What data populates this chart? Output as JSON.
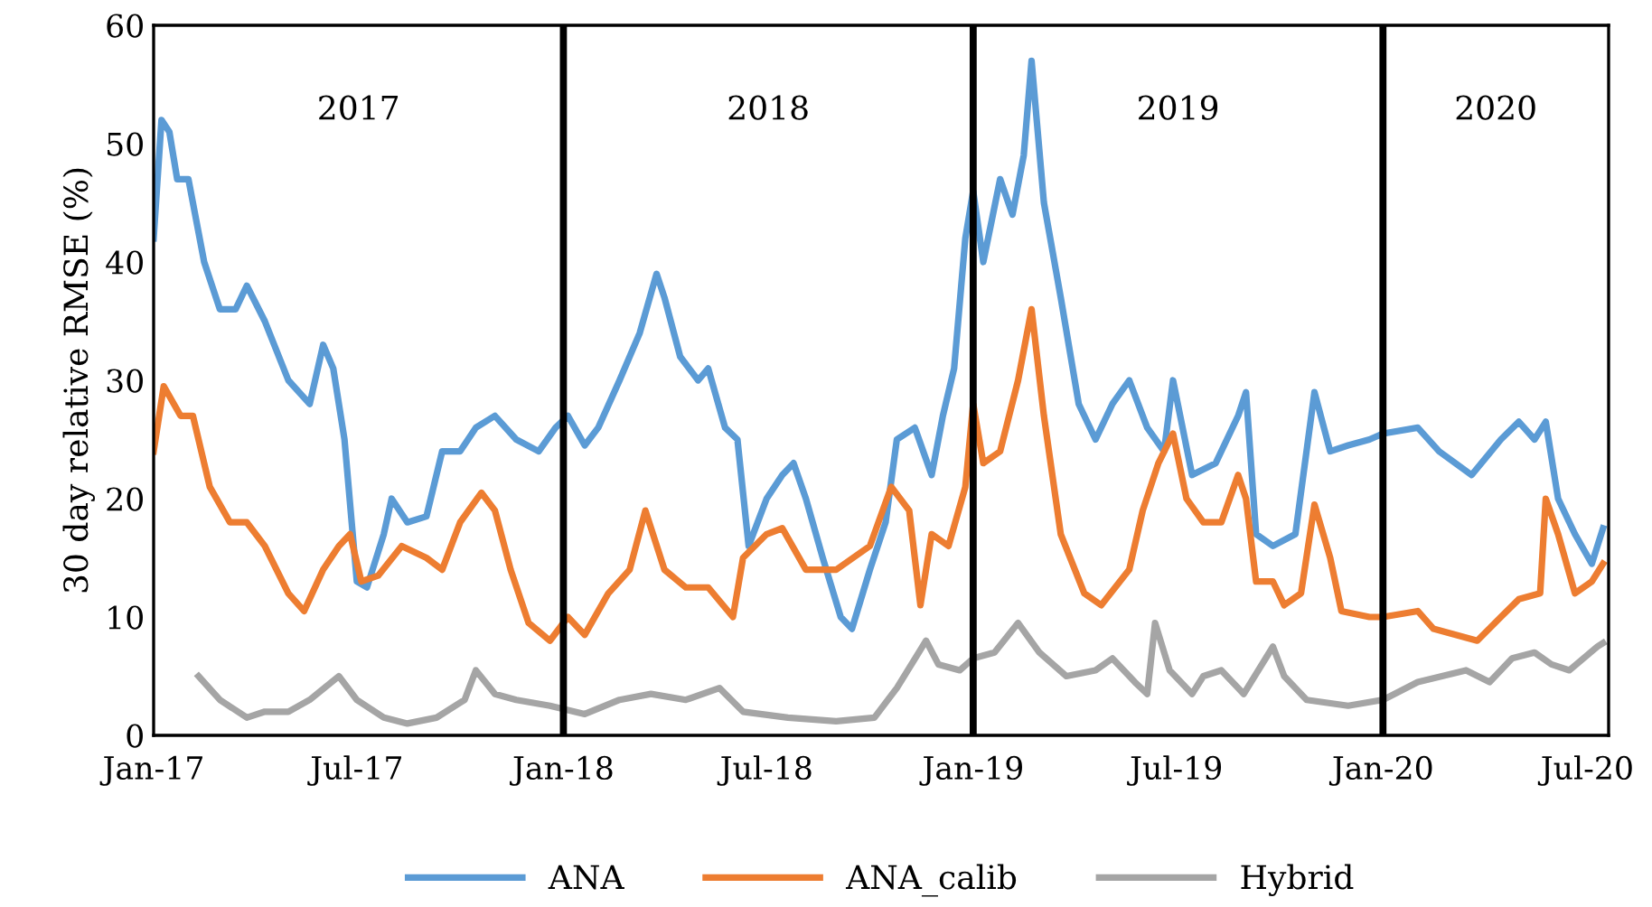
{
  "chart_data": {
    "type": "line",
    "ylabel": "30 day relative RMSE (%)",
    "xlim": [
      "2017-01-01",
      "2020-07-20"
    ],
    "ylim": [
      0,
      60
    ],
    "yticks": [
      0,
      10,
      20,
      30,
      40,
      50,
      60
    ],
    "xticks": [
      {
        "value": "2017-01-01",
        "label": "Jan-17"
      },
      {
        "value": "2017-07-01",
        "label": "Jul-17"
      },
      {
        "value": "2018-01-01",
        "label": "Jan-18"
      },
      {
        "value": "2018-07-01",
        "label": "Jul-18"
      },
      {
        "value": "2019-01-01",
        "label": "Jan-19"
      },
      {
        "value": "2019-07-01",
        "label": "Jul-19"
      },
      {
        "value": "2020-01-01",
        "label": "Jan-20"
      },
      {
        "value": "2020-07-01",
        "label": "Jul-20"
      }
    ],
    "grid": false,
    "legend": "bottom",
    "marker": "none",
    "line_style": "solid",
    "annotations": [
      "2017",
      "2018",
      "2019",
      "2020"
    ],
    "ref_lines": [
      {
        "axis": "x",
        "value": "2018-01-01",
        "color": "#000000"
      },
      {
        "axis": "x",
        "value": "2019-01-01",
        "color": "#000000"
      },
      {
        "axis": "x",
        "value": "2020-01-01",
        "color": "#000000"
      }
    ],
    "series": [
      {
        "name": "ANA",
        "color": "#5b9bd5",
        "x": [
          "2017-01-01",
          "2017-01-08",
          "2017-01-15",
          "2017-01-22",
          "2017-02-01",
          "2017-02-15",
          "2017-03-01",
          "2017-03-15",
          "2017-03-25",
          "2017-04-10",
          "2017-05-01",
          "2017-05-20",
          "2017-06-01",
          "2017-06-10",
          "2017-06-20",
          "2017-07-01",
          "2017-07-10",
          "2017-07-25",
          "2017-08-01",
          "2017-08-15",
          "2017-09-01",
          "2017-09-15",
          "2017-10-01",
          "2017-10-15",
          "2017-11-01",
          "2017-11-20",
          "2017-12-10",
          "2017-12-25",
          "2018-01-05",
          "2018-01-20",
          "2018-02-01",
          "2018-02-20",
          "2018-03-10",
          "2018-03-25",
          "2018-04-01",
          "2018-04-15",
          "2018-05-01",
          "2018-05-10",
          "2018-05-25",
          "2018-06-05",
          "2018-06-15",
          "2018-07-01",
          "2018-07-15",
          "2018-07-25",
          "2018-08-05",
          "2018-08-20",
          "2018-09-05",
          "2018-09-15",
          "2018-10-01",
          "2018-10-15",
          "2018-10-25",
          "2018-11-10",
          "2018-11-25",
          "2018-12-05",
          "2018-12-15",
          "2018-12-25",
          "2019-01-01",
          "2019-01-10",
          "2019-01-25",
          "2019-02-05",
          "2019-02-15",
          "2019-02-22",
          "2019-03-05",
          "2019-03-20",
          "2019-04-05",
          "2019-04-20",
          "2019-05-05",
          "2019-05-20",
          "2019-06-05",
          "2019-06-20",
          "2019-06-28",
          "2019-07-15",
          "2019-08-05",
          "2019-08-25",
          "2019-09-01",
          "2019-09-10",
          "2019-09-25",
          "2019-10-15",
          "2019-11-01",
          "2019-11-15",
          "2019-12-01",
          "2019-12-20",
          "2020-01-01",
          "2020-02-01",
          "2020-02-20",
          "2020-03-20",
          "2020-04-15",
          "2020-05-01",
          "2020-05-15",
          "2020-05-25",
          "2020-06-05",
          "2020-06-20",
          "2020-07-05",
          "2020-07-15"
        ],
        "values": [
          42,
          52,
          51,
          47,
          47,
          40,
          36,
          36,
          38,
          35,
          30,
          28,
          33,
          31,
          25,
          13,
          12.5,
          17,
          20,
          18,
          18.5,
          24,
          24,
          26,
          27,
          25,
          24,
          26,
          27,
          24.5,
          26,
          30,
          34,
          39,
          37,
          32,
          30,
          31,
          26,
          25,
          16,
          20,
          22,
          23,
          20,
          15,
          10,
          9,
          14,
          18,
          25,
          26,
          22,
          27,
          31,
          42,
          46,
          40,
          47,
          44,
          49,
          57,
          45,
          37,
          28,
          25,
          28,
          30,
          26,
          24,
          30,
          22,
          23,
          27,
          29,
          17,
          16,
          17,
          29,
          24,
          24.5,
          25,
          25.5,
          26,
          24,
          22,
          25,
          26.5,
          25,
          26.5,
          20,
          17,
          14.5,
          17.5
        ]
      },
      {
        "name": "ANA_calib",
        "color": "#ed7d31",
        "x": [
          "2017-01-01",
          "2017-01-10",
          "2017-01-25",
          "2017-02-05",
          "2017-02-20",
          "2017-03-10",
          "2017-03-25",
          "2017-04-10",
          "2017-05-01",
          "2017-05-15",
          "2017-06-01",
          "2017-06-15",
          "2017-06-25",
          "2017-07-05",
          "2017-07-20",
          "2017-08-10",
          "2017-09-01",
          "2017-09-15",
          "2017-10-01",
          "2017-10-20",
          "2017-11-01",
          "2017-11-15",
          "2017-12-01",
          "2017-12-20",
          "2018-01-05",
          "2018-01-20",
          "2018-02-10",
          "2018-03-01",
          "2018-03-15",
          "2018-04-01",
          "2018-04-20",
          "2018-05-10",
          "2018-06-01",
          "2018-06-10",
          "2018-07-01",
          "2018-07-15",
          "2018-08-05",
          "2018-09-01",
          "2018-10-01",
          "2018-10-20",
          "2018-11-05",
          "2018-11-15",
          "2018-11-25",
          "2018-12-10",
          "2018-12-25",
          "2019-01-01",
          "2019-01-10",
          "2019-01-25",
          "2019-02-10",
          "2019-02-22",
          "2019-03-05",
          "2019-03-20",
          "2019-04-10",
          "2019-04-25",
          "2019-05-20",
          "2019-06-01",
          "2019-06-15",
          "2019-06-28",
          "2019-07-10",
          "2019-07-25",
          "2019-08-10",
          "2019-08-25",
          "2019-09-01",
          "2019-09-10",
          "2019-09-25",
          "2019-10-05",
          "2019-10-20",
          "2019-11-01",
          "2019-11-15",
          "2019-11-25",
          "2019-12-20",
          "2020-01-01",
          "2020-02-01",
          "2020-02-15",
          "2020-03-25",
          "2020-04-15",
          "2020-05-01",
          "2020-05-20",
          "2020-05-25",
          "2020-06-05",
          "2020-06-20",
          "2020-07-05",
          "2020-07-15"
        ],
        "values": [
          24,
          29.5,
          27,
          27,
          21,
          18,
          18,
          16,
          12,
          10.5,
          14,
          16,
          17,
          13,
          13.5,
          16,
          15,
          14,
          18,
          20.5,
          19,
          14,
          9.5,
          8,
          10,
          8.5,
          12,
          14,
          19,
          14,
          12.5,
          12.5,
          10,
          15,
          17,
          17.5,
          14,
          14,
          16,
          21,
          19,
          11,
          17,
          16,
          21,
          28,
          23,
          24,
          30,
          36,
          27,
          17,
          12,
          11,
          14,
          19,
          23,
          25.5,
          20,
          18,
          18,
          22,
          20,
          13,
          13,
          11,
          12,
          19.5,
          15,
          10.5,
          10,
          10,
          10.5,
          9,
          8,
          10,
          11.5,
          12,
          20,
          17,
          12,
          13,
          14.5
        ]
      },
      {
        "name": "Hybrid",
        "color": "#a5a5a5",
        "x": [
          "2017-02-10",
          "2017-03-01",
          "2017-03-25",
          "2017-04-10",
          "2017-05-01",
          "2017-05-20",
          "2017-06-15",
          "2017-07-01",
          "2017-07-25",
          "2017-08-15",
          "2017-09-10",
          "2017-10-05",
          "2017-10-15",
          "2017-11-01",
          "2017-11-20",
          "2017-12-20",
          "2018-01-20",
          "2018-02-20",
          "2018-03-20",
          "2018-04-20",
          "2018-05-20",
          "2018-06-10",
          "2018-07-20",
          "2018-09-01",
          "2018-10-05",
          "2018-10-25",
          "2018-11-20",
          "2018-12-01",
          "2018-12-20",
          "2019-01-01",
          "2019-01-20",
          "2019-02-10",
          "2019-03-01",
          "2019-03-25",
          "2019-04-20",
          "2019-05-05",
          "2019-05-25",
          "2019-06-05",
          "2019-06-12",
          "2019-06-25",
          "2019-07-15",
          "2019-07-25",
          "2019-08-10",
          "2019-08-30",
          "2019-09-25",
          "2019-10-05",
          "2019-10-25",
          "2019-12-01",
          "2020-01-01",
          "2020-02-01",
          "2020-03-15",
          "2020-04-05",
          "2020-04-25",
          "2020-05-15",
          "2020-05-30",
          "2020-06-15",
          "2020-07-10",
          "2020-07-15"
        ],
        "values": [
          5,
          3,
          1.5,
          2,
          2,
          3,
          5,
          3,
          1.5,
          1,
          1.5,
          3,
          5.5,
          3.5,
          3,
          2.5,
          1.8,
          3,
          3.5,
          3,
          4,
          2,
          1.5,
          1.2,
          1.5,
          4,
          8,
          6,
          5.5,
          6.5,
          7,
          9.5,
          7,
          5,
          5.5,
          6.5,
          4.5,
          3.5,
          9.5,
          5.5,
          3.5,
          5,
          5.5,
          3.5,
          7.5,
          5,
          3,
          2.5,
          3,
          4.5,
          5.5,
          4.5,
          6.5,
          7,
          6,
          5.5,
          7.5,
          7.8
        ]
      }
    ]
  }
}
